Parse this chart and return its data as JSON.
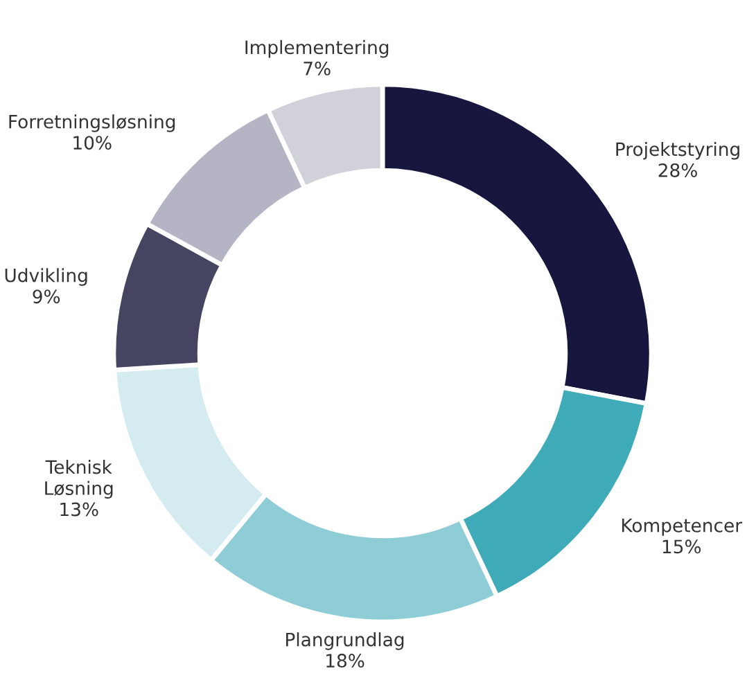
{
  "chart_data": {
    "type": "donut",
    "categories": [
      "Projektstyring",
      "Kompetencer",
      "Plangrundlag",
      "Teknisk\nLøsning",
      "Udvikling",
      "Forretningsløsning",
      "Implementering"
    ],
    "values": [
      28,
      15,
      18,
      13,
      9,
      10,
      7
    ],
    "value_labels": [
      "28%",
      "15%",
      "18%",
      "13%",
      "9%",
      "10%",
      "7%"
    ],
    "colors": [
      "#16163f",
      "#3fabb8",
      "#8ecdd6",
      "#d4ebef",
      "#454461",
      "#b5b4c4",
      "#d1d1d9"
    ],
    "legend": false
  }
}
